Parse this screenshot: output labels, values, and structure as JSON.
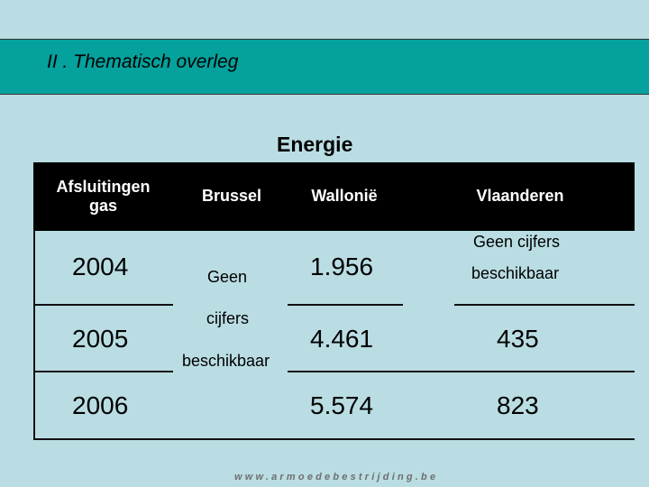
{
  "header": {
    "title": "II . Thematisch overleg"
  },
  "table": {
    "title": "Energie",
    "headers": {
      "col1_line1": "Afsluitingen",
      "col1_line2": "gas",
      "col2": "Brussel",
      "col3": "Wallonië",
      "col4": "Vlaanderen"
    },
    "rows": [
      {
        "year": "2004",
        "wallonie": "1.956"
      },
      {
        "year": "2005",
        "wallonie": "4.461",
        "vlaanderen": "435"
      },
      {
        "year": "2006",
        "wallonie": "5.574",
        "vlaanderen": "823"
      }
    ],
    "brussel_note": {
      "line1": "Geen",
      "line2": "cijfers",
      "line3": "beschikbaar"
    },
    "vlaanderen_note": {
      "line1": "Geen cijfers",
      "line2": "beschikbaar"
    }
  },
  "footer": {
    "url": "www.armoedebestrijding.be"
  }
}
